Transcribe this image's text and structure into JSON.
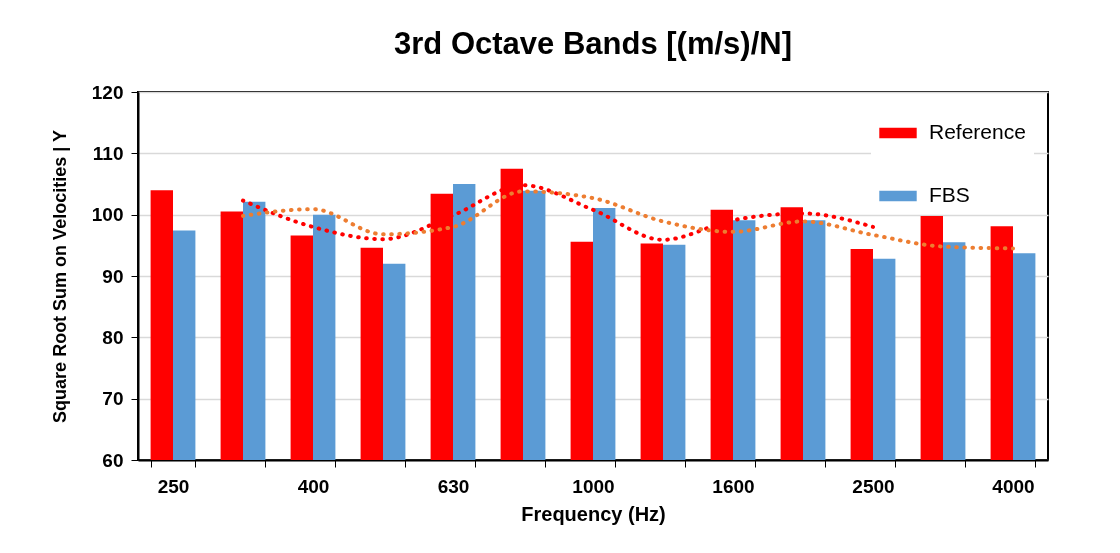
{
  "chart_data": {
    "type": "bar",
    "title": "3rd Octave Bands [(m/s)/N]",
    "xlabel": "Frequency (Hz)",
    "ylabel": "Square Root Sum on Velocities | Y",
    "categories": [
      "250",
      null,
      "400",
      null,
      "630",
      null,
      "1000",
      null,
      "1600",
      null,
      "2500",
      null,
      "4000"
    ],
    "series": [
      {
        "name": "Reference",
        "color": "#ff0000",
        "values": [
          104.0,
          100.5,
          96.6,
          94.6,
          103.4,
          107.5,
          95.6,
          95.3,
          100.8,
          101.2,
          94.4,
          99.8,
          98.1
        ]
      },
      {
        "name": "FBS",
        "color": "#5b9bd5",
        "values": [
          97.4,
          102.1,
          100.0,
          92.0,
          105.0,
          103.9,
          101.1,
          95.1,
          99.1,
          99.1,
          92.8,
          95.5,
          93.7
        ]
      },
      {
        "type": "line",
        "color": "#ff0000",
        "line_style": "dotted",
        "values": [
          null,
          102.3,
          98.0,
          96.0,
          99.9,
          104.8,
          100.8,
          95.9,
          99.1,
          100.2,
          98.0,
          null,
          null
        ]
      },
      {
        "type": "line",
        "color": "#ed7d31",
        "line_style": "dotted",
        "values": [
          null,
          99.8,
          100.9,
          96.8,
          98.0,
          103.8,
          102.7,
          98.9,
          97.2,
          98.9,
          96.7,
          94.8,
          94.5
        ]
      }
    ],
    "ylim": [
      60,
      120
    ],
    "yticks": [
      60,
      70,
      80,
      90,
      100,
      110,
      120
    ],
    "grid": "y",
    "legend": "top right"
  }
}
